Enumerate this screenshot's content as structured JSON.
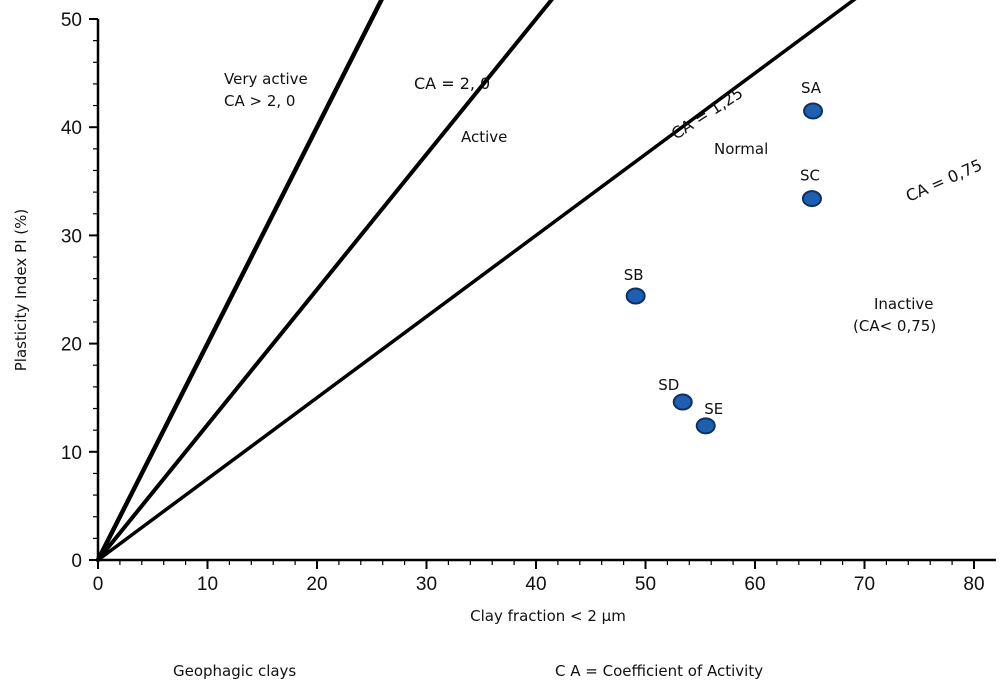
{
  "chart_data": {
    "type": "scatter",
    "xlabel": "Clay fraction < 2 μm",
    "ylabel": "Plasticity Index PI (%)",
    "xlim": [
      0,
      82
    ],
    "ylim": [
      0,
      50
    ],
    "xticks": [
      0,
      10,
      20,
      30,
      40,
      50,
      60,
      70,
      80
    ],
    "yticks": [
      0,
      10,
      20,
      30,
      40,
      50
    ],
    "grid": false,
    "points": [
      {
        "label": "SA",
        "x": 65.3,
        "y": 41.5
      },
      {
        "label": "SC",
        "x": 65.2,
        "y": 33.4
      },
      {
        "label": "SB",
        "x": 49.1,
        "y": 24.4
      },
      {
        "label": "SD",
        "x": 53.4,
        "y": 14.6
      },
      {
        "label": "SE",
        "x": 55.5,
        "y": 12.4
      }
    ],
    "activity_lines": [
      {
        "label": "CA = 2, 0",
        "slope": 2.0,
        "x_end": 31.0
      },
      {
        "label": "CA = 1,25",
        "slope": 1.25,
        "x_end": 51.0
      },
      {
        "label": "CA = 0,75",
        "slope": 0.75,
        "x_end": 72.5
      }
    ],
    "region_labels": {
      "very_active_1": "Very active",
      "very_active_2": "CA > 2, 0",
      "active": "Active",
      "normal": "Normal",
      "inactive_1": "Inactive",
      "inactive_2": "(CA< 0,75)"
    },
    "footer_left": "Geophagic clays",
    "footer_right": "C A = Coefficient of Activity",
    "marker_color": "#1f5fb0",
    "marker_edge": "#0d2f66"
  }
}
